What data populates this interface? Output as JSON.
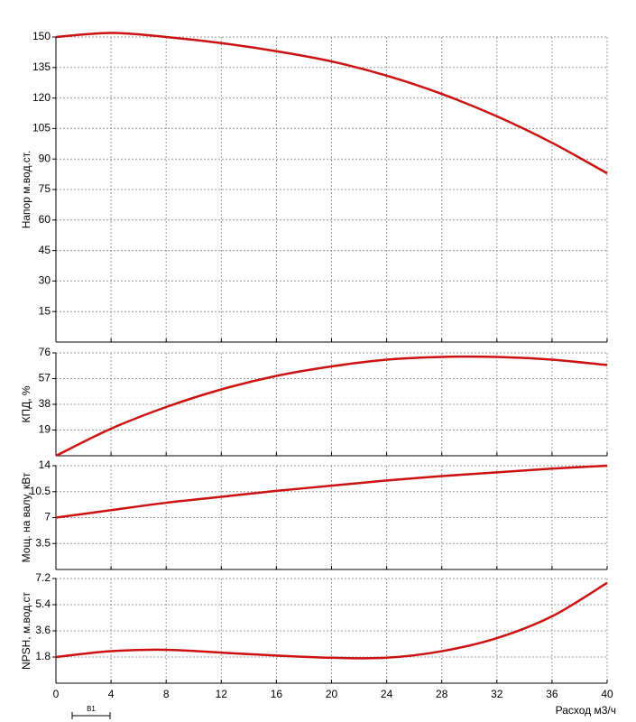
{
  "chart_data": [
    {
      "type": "line",
      "ylabel": "Напор м.вод.ст.",
      "x": [
        0,
        4,
        8,
        12,
        16,
        20,
        24,
        28,
        32,
        36,
        40
      ],
      "values": [
        150,
        152,
        150,
        147,
        143,
        138,
        131,
        122,
        111,
        98,
        83
      ],
      "color": "#cc1111",
      "xlim": [
        0,
        40
      ],
      "xticks": [
        0,
        4,
        8,
        12,
        16,
        20,
        24,
        28,
        32,
        36,
        40
      ],
      "ylim": [
        0,
        150
      ],
      "yticks": [
        15,
        30,
        45,
        60,
        75,
        90,
        105,
        120,
        135,
        150
      ],
      "grid": true
    },
    {
      "type": "line",
      "ylabel": "КПД, %",
      "x": [
        0,
        4,
        8,
        12,
        16,
        20,
        24,
        28,
        32,
        36,
        40
      ],
      "values": [
        0,
        20,
        36,
        49,
        59,
        66,
        71,
        73,
        73,
        71,
        67
      ],
      "color": "#cc1111",
      "xlim": [
        0,
        40
      ],
      "xticks": [
        0,
        4,
        8,
        12,
        16,
        20,
        24,
        28,
        32,
        36,
        40
      ],
      "ylim": [
        0,
        76
      ],
      "yticks": [
        19,
        38,
        57,
        76
      ],
      "grid": true
    },
    {
      "type": "line",
      "ylabel": "Мощ. на валу, кВт",
      "x": [
        0,
        4,
        8,
        12,
        16,
        20,
        24,
        28,
        32,
        36,
        40
      ],
      "values": [
        7,
        8,
        9,
        9.8,
        10.6,
        11.3,
        12,
        12.6,
        13.1,
        13.6,
        14
      ],
      "color": "#cc1111",
      "xlim": [
        0,
        40
      ],
      "xticks": [
        0,
        4,
        8,
        12,
        16,
        20,
        24,
        28,
        32,
        36,
        40
      ],
      "ylim": [
        0,
        14
      ],
      "yticks": [
        3.5,
        7,
        10.5,
        14
      ],
      "grid": true
    },
    {
      "type": "line",
      "ylabel": "NPSH, м.вод.ст",
      "xlabel": "Расход м3/ч",
      "x": [
        0,
        4,
        8,
        12,
        16,
        20,
        24,
        28,
        32,
        36,
        40
      ],
      "values": [
        1.8,
        2.2,
        2.3,
        2.1,
        1.9,
        1.75,
        1.75,
        2.2,
        3.1,
        4.6,
        6.9
      ],
      "color": "#cc1111",
      "xlim": [
        0,
        40
      ],
      "xticks": [
        0,
        4,
        8,
        12,
        16,
        20,
        24,
        28,
        32,
        36,
        40
      ],
      "ylim": [
        0,
        7.2
      ],
      "yticks": [
        1.8,
        3.6,
        5.4,
        7.2
      ],
      "grid": true
    }
  ],
  "marker_label": "B1"
}
